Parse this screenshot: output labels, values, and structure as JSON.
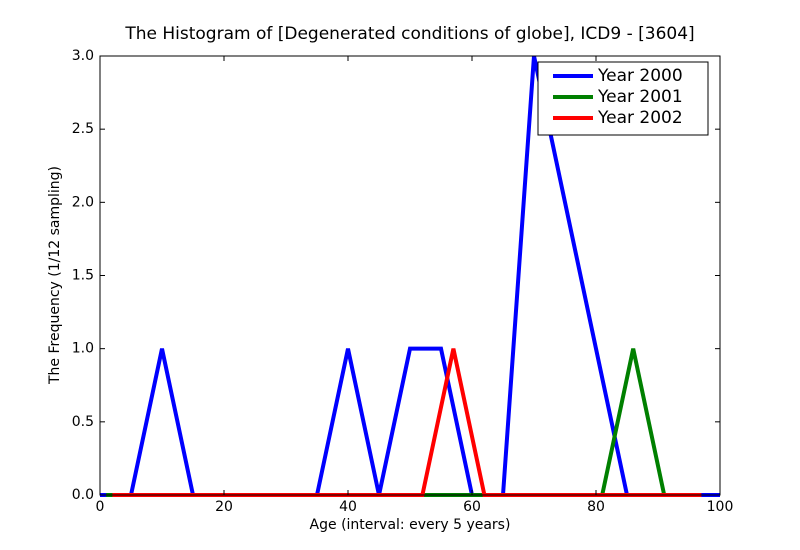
{
  "chart_data": {
    "type": "line",
    "title": "The Histogram of [Degenerated conditions of globe], ICD9 - [3604]",
    "xlabel": "Age (interval: every 5 years)",
    "ylabel": "The Frequency (1/12 sampling)",
    "xlim": [
      0,
      100
    ],
    "ylim": [
      0,
      3
    ],
    "xticks": [
      0,
      20,
      40,
      60,
      80,
      100
    ],
    "yticks": [
      {
        "value": 0,
        "label": "0.0"
      },
      {
        "value": 0.5,
        "label": "0.5"
      },
      {
        "value": 1,
        "label": "1.0"
      },
      {
        "value": 1.5,
        "label": "1.5"
      },
      {
        "value": 2,
        "label": "2.0"
      },
      {
        "value": 2.5,
        "label": "2.5"
      },
      {
        "value": 3,
        "label": "3.0"
      }
    ],
    "legend": "upper right",
    "series": [
      {
        "name": "Year 2000",
        "color": "#0000ff",
        "x": [
          0,
          5,
          10,
          15,
          20,
          25,
          30,
          35,
          40,
          45,
          50,
          55,
          60,
          65,
          70,
          75,
          80,
          85,
          90,
          95,
          100
        ],
        "values": [
          0,
          0,
          1,
          0,
          0,
          0,
          0,
          0,
          1,
          0,
          1,
          1,
          0,
          0,
          3,
          2,
          1,
          0,
          0,
          0,
          0
        ]
      },
      {
        "name": "Year 2001",
        "color": "#008000",
        "x": [
          1,
          6,
          11,
          16,
          21,
          26,
          31,
          36,
          41,
          46,
          51,
          56,
          61,
          66,
          71,
          76,
          81,
          86,
          91,
          96
        ],
        "values": [
          0,
          0,
          0,
          0,
          0,
          0,
          0,
          0,
          0,
          0,
          0,
          0,
          0,
          0,
          0,
          0,
          0,
          1,
          0,
          0
        ]
      },
      {
        "name": "Year 2002",
        "color": "#ff0000",
        "x": [
          2,
          7,
          12,
          17,
          22,
          27,
          32,
          37,
          42,
          47,
          52,
          57,
          62,
          67,
          72,
          77,
          82,
          87,
          92,
          97
        ],
        "values": [
          0,
          0,
          0,
          0,
          0,
          0,
          0,
          0,
          0,
          0,
          0,
          1,
          0,
          0,
          0,
          0,
          0,
          0,
          0,
          0
        ]
      }
    ]
  }
}
